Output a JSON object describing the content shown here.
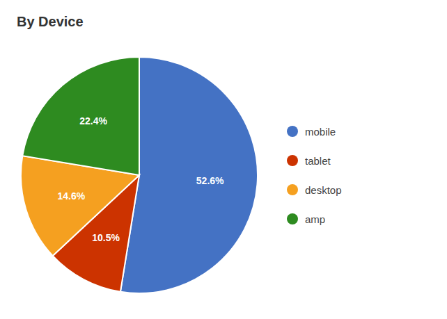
{
  "chart_data": {
    "type": "pie",
    "title": "By Device",
    "categories": [
      "mobile",
      "tablet",
      "desktop",
      "amp"
    ],
    "values": [
      52.6,
      10.5,
      14.6,
      22.4
    ],
    "value_labels": [
      "52.6%",
      "10.5%",
      "14.6%",
      "22.4%"
    ],
    "colors": [
      "#4472C4",
      "#CC3300",
      "#F5A020",
      "#2E8B20"
    ],
    "data_labels": true,
    "legend": "right"
  }
}
